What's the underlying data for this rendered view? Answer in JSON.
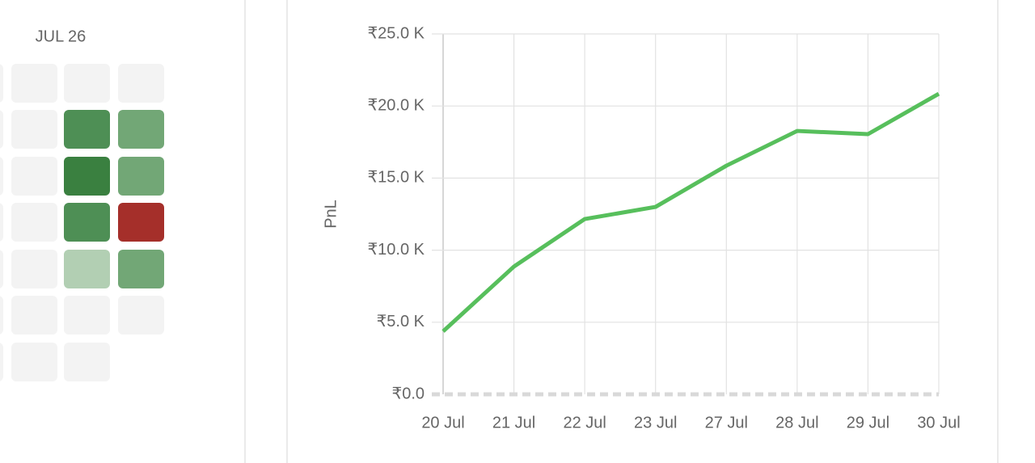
{
  "calendar": {
    "month_label": "JUL 26",
    "cells": [
      [
        "#f3f3f3",
        "#f3f3f3",
        "#f3f3f3",
        "#f3f3f3"
      ],
      [
        "#f3f3f3",
        "#f3f3f3",
        "#4e8f55",
        "#72a776"
      ],
      [
        "#f3f3f3",
        "#f3f3f3",
        "#3a8040",
        "#72a776"
      ],
      [
        "#f3f3f3",
        "#f3f3f3",
        "#4e8f55",
        "#a52f2a"
      ],
      [
        "#f3f3f3",
        "#f3f3f3",
        "#b2cfb3",
        "#72a776"
      ],
      [
        "#f3f3f3",
        "#f3f3f3",
        "#f3f3f3",
        "#f3f3f3"
      ],
      [
        "#f3f3f3",
        "#f3f3f3",
        "#f3f3f3"
      ]
    ]
  },
  "chart_data": {
    "type": "line",
    "y_label": "PnL",
    "categories": [
      "20 Jul",
      "21 Jul",
      "22 Jul",
      "23 Jul",
      "27 Jul",
      "28 Jul",
      "29 Jul",
      "30 Jul"
    ],
    "series": [
      {
        "name": "PnL",
        "color": "#57bf5c",
        "values": [
          4370,
          8860,
          12160,
          13000,
          15860,
          18270,
          18050,
          20850
        ]
      }
    ],
    "ylim": [
      0,
      25000
    ],
    "yticks": [
      {
        "value": 0,
        "label": "₹0.0"
      },
      {
        "value": 5000,
        "label": "₹5.0 K"
      },
      {
        "value": 10000,
        "label": "₹10.0 K"
      },
      {
        "value": 15000,
        "label": "₹15.0 K"
      },
      {
        "value": 20000,
        "label": "₹20.0 K"
      },
      {
        "value": 25000,
        "label": "₹25.0 K"
      }
    ],
    "grid": true
  }
}
